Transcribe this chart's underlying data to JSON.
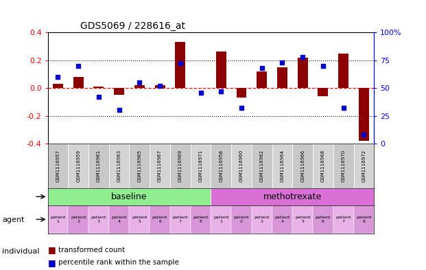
{
  "title": "GDS5069 / 228616_at",
  "samples": [
    "GSM1116957",
    "GSM1116959",
    "GSM1116961",
    "GSM1116963",
    "GSM1116965",
    "GSM1116967",
    "GSM1116969",
    "GSM1116971",
    "GSM1116958",
    "GSM1116960",
    "GSM1116962",
    "GSM1116964",
    "GSM1116966",
    "GSM1116968",
    "GSM1116970",
    "GSM1116972"
  ],
  "bar_values": [
    0.03,
    0.08,
    0.01,
    -0.05,
    0.02,
    0.02,
    0.33,
    0.0,
    0.26,
    -0.07,
    0.12,
    0.15,
    0.22,
    -0.06,
    0.25,
    -0.38
  ],
  "percentile_values": [
    60,
    70,
    42,
    30,
    55,
    52,
    72,
    46,
    47,
    32,
    68,
    73,
    78,
    70,
    32,
    8
  ],
  "groups": [
    {
      "label": "baseline",
      "color": "#90EE90",
      "start": 0,
      "end": 8
    },
    {
      "label": "methotrexate",
      "color": "#DA70D6",
      "start": 8,
      "end": 16
    }
  ],
  "patients_b": [
    "patient\n1",
    "patient\n2",
    "patient\n3",
    "patient\n4",
    "patient\n5",
    "patient\n6",
    "patient\n7",
    "patient\n8"
  ],
  "patients_m": [
    "patient\n1",
    "patient\n2",
    "patient\n3",
    "patient\n4",
    "patient\n5",
    "patient\n6",
    "patient\n7",
    "patient\n8"
  ],
  "ylim": [
    -0.4,
    0.4
  ],
  "yticks": [
    -0.4,
    -0.2,
    0.0,
    0.2,
    0.4
  ],
  "bar_color": "#8B0000",
  "dot_color": "#0000CD",
  "pct_yticks": [
    0,
    25,
    50,
    75,
    100
  ],
  "legend_bar": "transformed count",
  "legend_dot": "percentile rank within the sample",
  "agent_label": "agent",
  "individual_label": "individual",
  "bg_color": "#ffffff",
  "sample_cell_colors": [
    "#c8c8c8",
    "#d4d4d4"
  ],
  "indiv_cell_colors": [
    "#e8b4e8",
    "#d898d8"
  ]
}
